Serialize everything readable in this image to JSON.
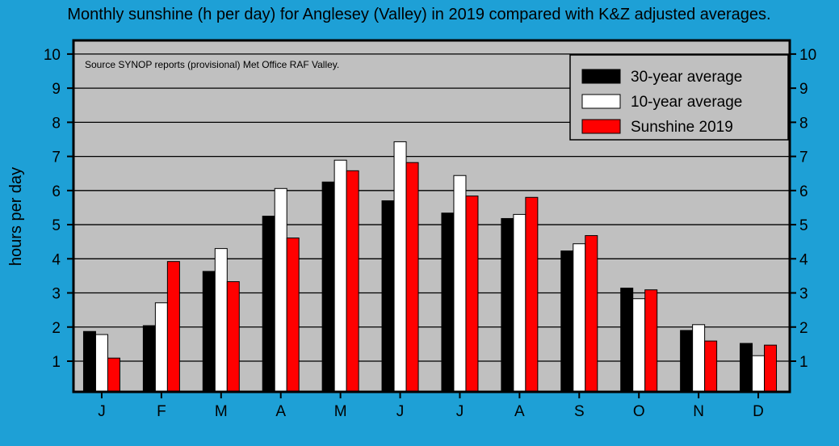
{
  "chart_data": {
    "type": "bar",
    "title": "Monthly sunshine (h per day) for Anglesey (Valley) in 2019 compared with K&Z adjusted averages.",
    "ylabel": "hours per day",
    "xlabel": "",
    "annotation": "Source SYNOP reports (provisional) Met Office RAF Valley.",
    "categories": [
      "J",
      "F",
      "M",
      "A",
      "M",
      "J",
      "J",
      "A",
      "S",
      "O",
      "N",
      "D"
    ],
    "ylim": [
      0.1,
      10.4
    ],
    "yticks": [
      1,
      2,
      3,
      4,
      5,
      6,
      7,
      8,
      9,
      10
    ],
    "grid": true,
    "legend_position": "top-right",
    "series": [
      {
        "name": "30-year average",
        "color": "#000000",
        "values": [
          1.87,
          2.04,
          3.63,
          5.25,
          6.25,
          5.7,
          5.34,
          5.18,
          4.23,
          3.14,
          1.9,
          1.52
        ]
      },
      {
        "name": "10-year average",
        "color": "#ffffff",
        "values": [
          1.78,
          2.71,
          4.3,
          6.06,
          6.89,
          7.43,
          6.44,
          5.3,
          4.44,
          2.83,
          2.07,
          1.16
        ]
      },
      {
        "name": "Sunshine 2019",
        "color": "#ff0000",
        "values": [
          1.09,
          3.92,
          3.33,
          4.61,
          6.58,
          6.82,
          5.84,
          5.8,
          4.68,
          3.09,
          1.59,
          1.47
        ]
      }
    ],
    "colors": {
      "background": "#1ea0d6",
      "plot": "#c0c0c0"
    }
  }
}
